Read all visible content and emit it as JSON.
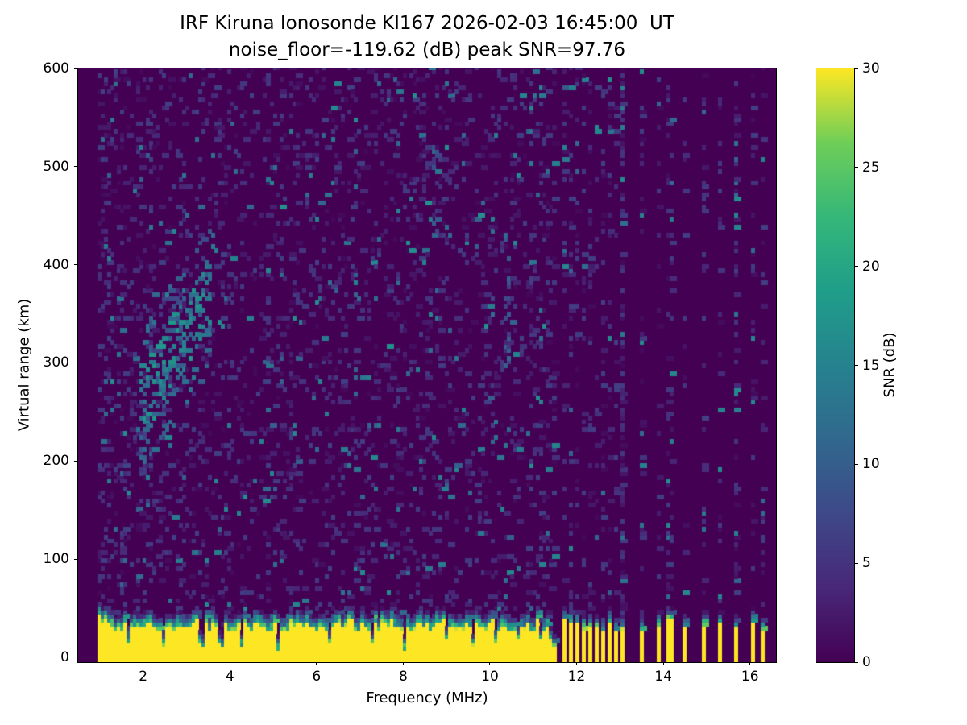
{
  "title": {
    "line1": "IRF Kiruna Ionosonde KI167 2026-02-03 16:45:00  UT",
    "line2": "noise_floor=-119.62 (dB) peak SNR=97.76"
  },
  "chart_data": {
    "type": "heatmap",
    "title": "IRF Kiruna Ionosonde KI167 2026-02-03 16:45:00  UT",
    "subtitle": "noise_floor=-119.62 (dB) peak SNR=97.76",
    "station": "KI167",
    "timestamp_ut": "2026-02-03 16:45:00",
    "noise_floor_db": -119.62,
    "peak_snr_db": 97.76,
    "xlabel": "Frequency (MHz)",
    "ylabel": "Virtual range (km)",
    "colorbar_label": "SNR (dB)",
    "x_ticks": [
      2,
      4,
      6,
      8,
      10,
      12,
      14,
      16
    ],
    "y_ticks": [
      0,
      100,
      200,
      300,
      400,
      500,
      600
    ],
    "colorbar_ticks": [
      0,
      5,
      10,
      15,
      20,
      25,
      30
    ],
    "xlim": [
      0.5,
      16.6
    ],
    "ylim": [
      -5,
      600
    ],
    "clim": [
      0,
      30
    ],
    "grid": false,
    "legend": "colorbar-right",
    "colormap": {
      "name": "viridis",
      "stops": [
        [
          0,
          "#440154"
        ],
        [
          0.125,
          "#482878"
        ],
        [
          0.25,
          "#3e4989"
        ],
        [
          0.375,
          "#31688e"
        ],
        [
          0.5,
          "#26828e"
        ],
        [
          0.625,
          "#1f9e89"
        ],
        [
          0.75,
          "#35b779"
        ],
        [
          0.875,
          "#6ece58"
        ],
        [
          1,
          "#fde725"
        ]
      ]
    },
    "features": {
      "freq_data_range_mhz": [
        0.95,
        16.45
      ],
      "ground_clutter": {
        "snr_db": 30,
        "band_top_km": 30,
        "transition_km": 14,
        "continuous_until_mhz": 11.55
      },
      "interference_stripes_mhz": [
        11.7,
        11.85,
        12.0,
        12.15,
        12.3,
        12.45,
        12.6,
        12.75,
        12.9,
        13.05,
        13.5,
        13.9,
        14.15,
        14.5,
        14.95,
        15.3,
        15.7,
        16.05,
        16.3
      ],
      "clutter_notch_freqs_mhz": [
        1.65,
        2.5,
        3.35,
        3.8,
        4.3,
        5.1,
        6.3,
        7.3,
        8.05,
        9.0,
        9.6,
        10.15,
        10.65,
        11.2,
        11.45
      ],
      "ionospheric_echo": {
        "freq_start_mhz": 1.9,
        "freq_end_mhz": 3.6,
        "range_start_km": 255,
        "range_end_km": 370,
        "spread_km": 38,
        "snr_db": 14
      },
      "noisy_patches": [
        {
          "f": 8.75,
          "r1": 420,
          "r2": 520,
          "p": 0.22
        },
        {
          "f": 10.35,
          "r1": 290,
          "r2": 430,
          "p": 0.25
        },
        {
          "f": 2.1,
          "r1": 150,
          "r2": 240,
          "p": 0.12
        },
        {
          "f": 1.55,
          "r1": 80,
          "r2": 200,
          "p": 0.15
        }
      ],
      "noise": {
        "seed": 167,
        "speckle_probability": 0.22,
        "speckle_max_snr_db": 6.5,
        "teal_probability": 0.012,
        "teal_snr_db": 13
      }
    }
  },
  "colors": {
    "background": "#ffffff",
    "text": "#000000",
    "axes": "#000000"
  }
}
